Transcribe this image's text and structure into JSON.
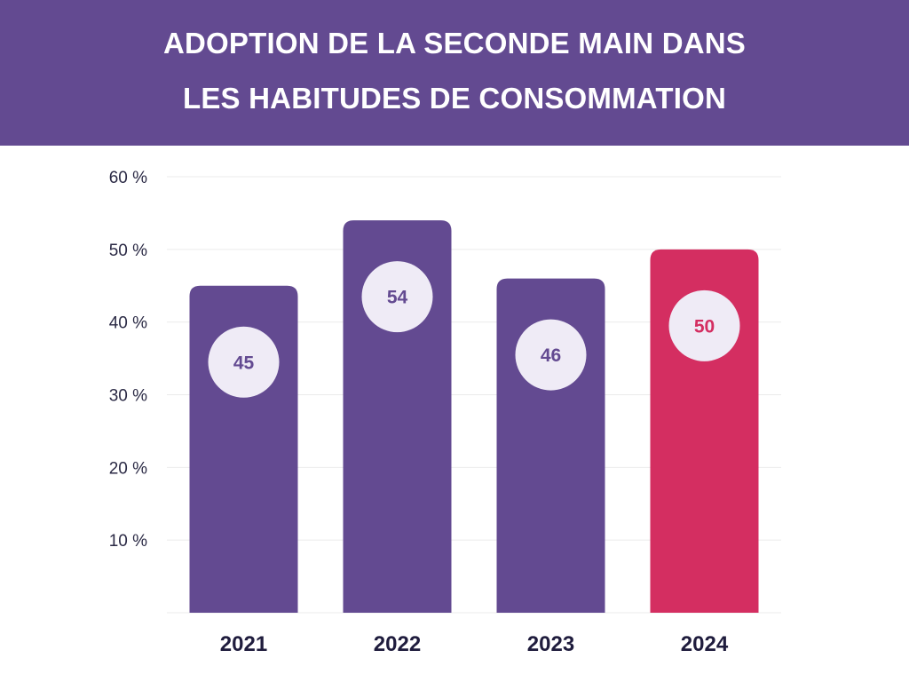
{
  "header": {
    "title_line1": "ADOPTION DE LA SECONDE MAIN DANS",
    "title_line2": "LES HABITUDES DE CONSOMMATION"
  },
  "colors": {
    "header_bg": "#634a91",
    "bar_default": "#634a91",
    "bar_highlight": "#d42e61",
    "bubble_fill": "#efebf6",
    "grid": "#ebebeb",
    "text_dark": "#1f1c3d"
  },
  "chart_data": {
    "type": "bar",
    "title": "ADOPTION DE LA SECONDE MAIN DANS LES HABITUDES DE CONSOMMATION",
    "categories": [
      "2021",
      "2022",
      "2023",
      "2024"
    ],
    "values": [
      45,
      54,
      46,
      50
    ],
    "value_labels": [
      "45",
      "54",
      "46",
      "50"
    ],
    "highlight_index": 3,
    "ylim": [
      0,
      60
    ],
    "yticks": [
      10,
      20,
      30,
      40,
      50,
      60
    ],
    "ytick_labels": [
      "10 %",
      "20 %",
      "30 %",
      "40 %",
      "50 %",
      "60 %"
    ],
    "xlabel": "",
    "ylabel": "",
    "grid": true,
    "legend": false
  }
}
